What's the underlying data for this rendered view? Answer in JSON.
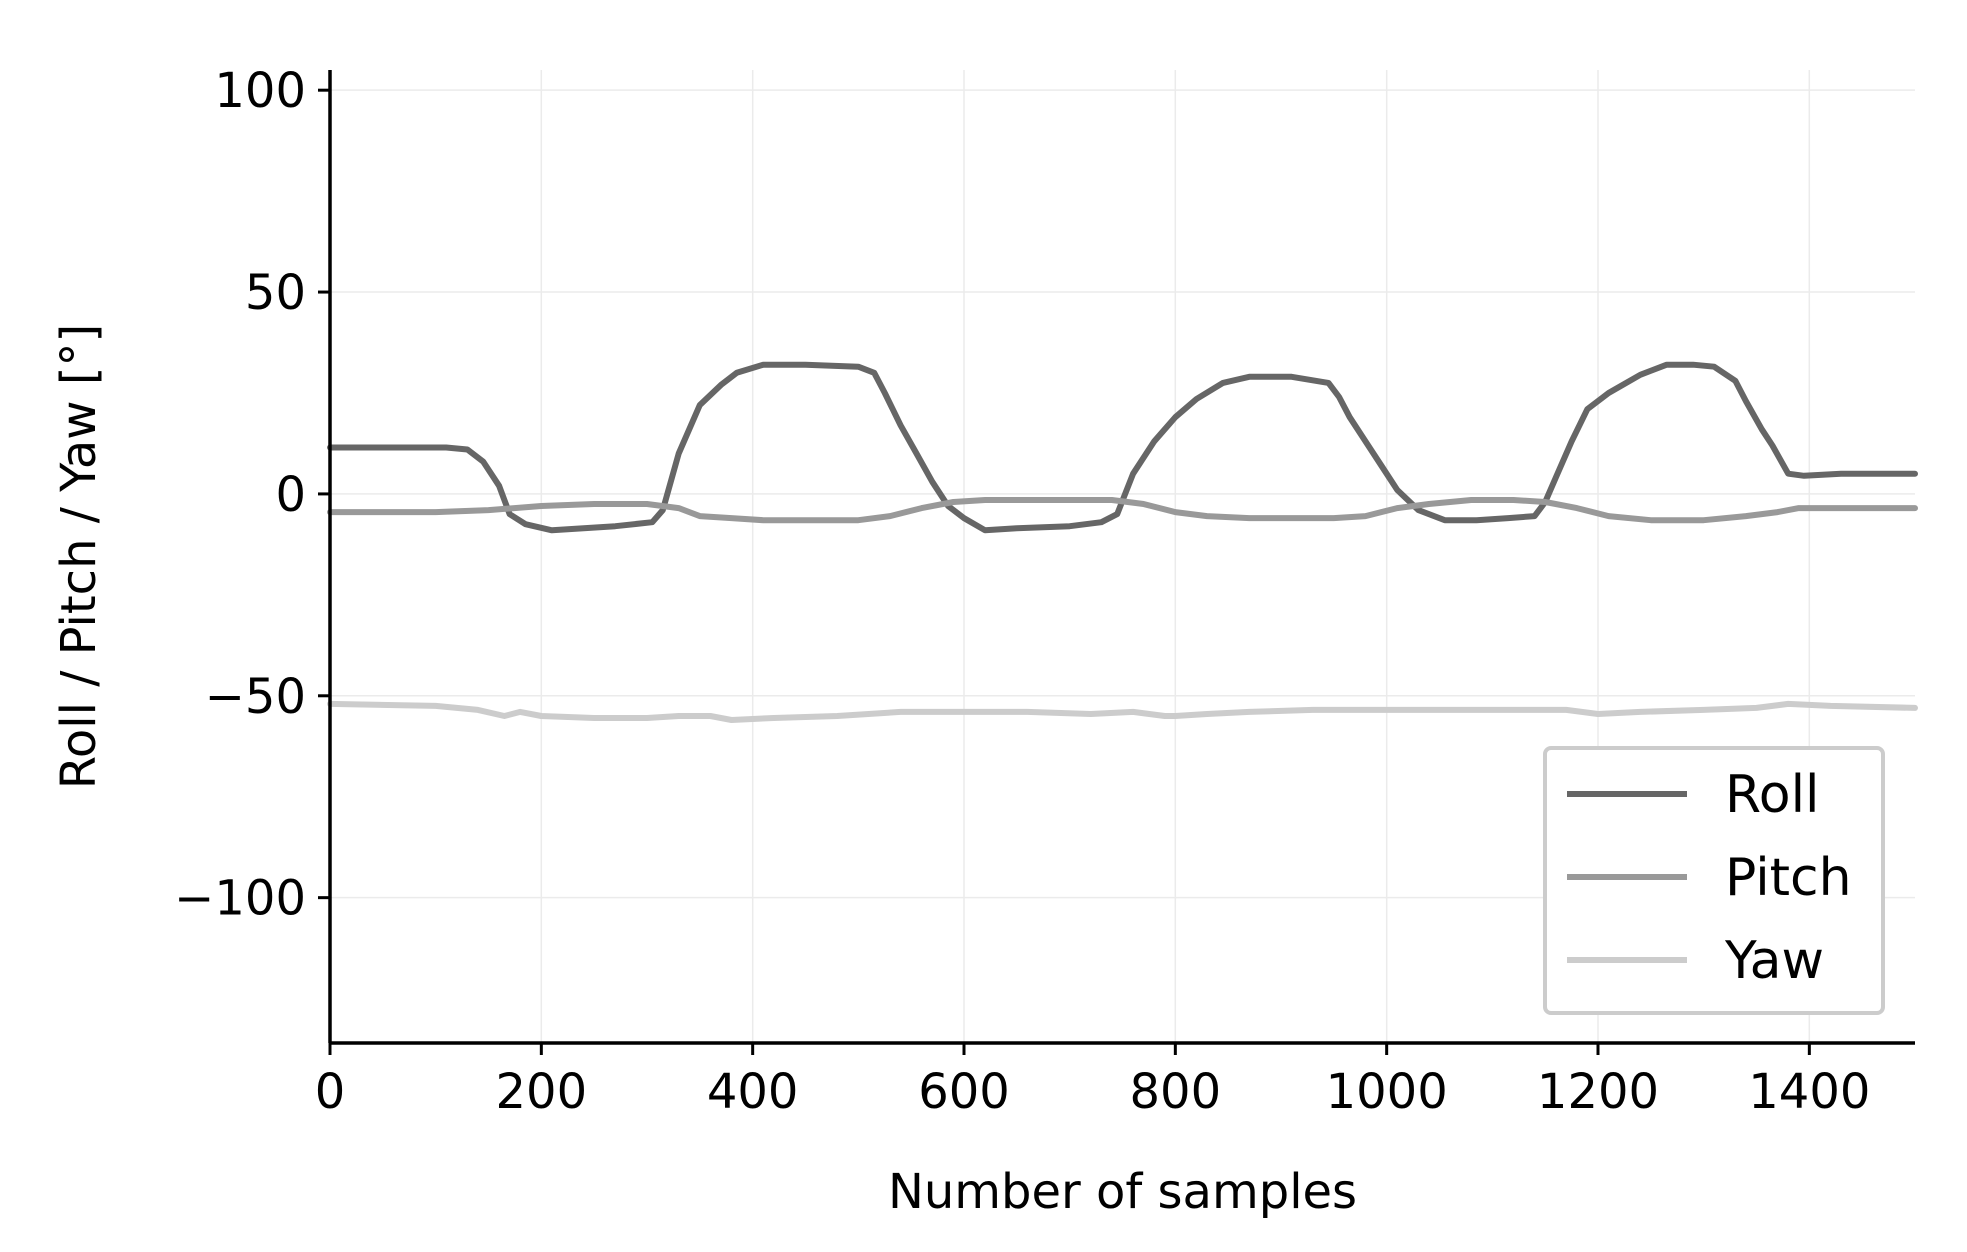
{
  "chart_data": {
    "type": "line",
    "title": "",
    "xlabel": "Number of samples",
    "ylabel": "Roll / Pitch / Yaw [°]",
    "xlim": [
      0,
      1500
    ],
    "ylim": [
      -136,
      105
    ],
    "xticks": [
      0,
      200,
      400,
      600,
      800,
      1000,
      1200,
      1400
    ],
    "yticks": [
      100,
      50,
      0,
      -50,
      -100
    ],
    "xtick_labels": [
      "0",
      "200",
      "400",
      "600",
      "800",
      "1000",
      "1200",
      "1400"
    ],
    "ytick_labels": [
      "100",
      "50",
      "0",
      "−50",
      "−100"
    ],
    "grid": true,
    "legend_position": "bottom-right",
    "series": [
      {
        "name": "Roll",
        "color": "#666666",
        "x": [
          0,
          60,
          110,
          130,
          145,
          160,
          170,
          185,
          210,
          240,
          270,
          305,
          315,
          330,
          350,
          370,
          385,
          410,
          450,
          500,
          515,
          525,
          540,
          555,
          570,
          585,
          600,
          620,
          650,
          700,
          730,
          745,
          760,
          780,
          800,
          820,
          845,
          870,
          910,
          945,
          955,
          965,
          980,
          995,
          1010,
          1030,
          1055,
          1085,
          1115,
          1140,
          1150,
          1160,
          1175,
          1190,
          1210,
          1240,
          1265,
          1290,
          1310,
          1330,
          1340,
          1355,
          1365,
          1380,
          1395,
          1430,
          1500
        ],
        "values": [
          11.5,
          11.5,
          11.5,
          11,
          8,
          2,
          -5,
          -7.5,
          -9,
          -8.5,
          -8,
          -7,
          -4,
          10,
          22,
          27,
          30,
          32,
          32,
          31.5,
          30,
          25,
          17,
          10,
          3,
          -3,
          -6,
          -9,
          -8.5,
          -8,
          -7,
          -5,
          5,
          13,
          19,
          23.5,
          27.5,
          29,
          29,
          27.5,
          24,
          19,
          13,
          7,
          1,
          -4,
          -6.5,
          -6.5,
          -6,
          -5.5,
          -2,
          4,
          13,
          21,
          25,
          29.5,
          32,
          32,
          31.5,
          28,
          23,
          16,
          12,
          5,
          4.5,
          5,
          5
        ]
      },
      {
        "name": "Pitch",
        "color": "#999999",
        "x": [
          0,
          100,
          150,
          200,
          250,
          300,
          330,
          350,
          380,
          410,
          450,
          500,
          530,
          560,
          590,
          620,
          650,
          700,
          740,
          770,
          800,
          830,
          870,
          920,
          950,
          980,
          1010,
          1040,
          1080,
          1120,
          1150,
          1180,
          1210,
          1250,
          1300,
          1340,
          1370,
          1390,
          1450,
          1500
        ],
        "values": [
          -4.5,
          -4.5,
          -4,
          -3,
          -2.5,
          -2.5,
          -3.5,
          -5.5,
          -6,
          -6.5,
          -6.5,
          -6.5,
          -5.5,
          -3.5,
          -2,
          -1.5,
          -1.5,
          -1.5,
          -1.5,
          -2.5,
          -4.5,
          -5.5,
          -6,
          -6,
          -6,
          -5.5,
          -3.5,
          -2.5,
          -1.5,
          -1.5,
          -2,
          -3.5,
          -5.5,
          -6.5,
          -6.5,
          -5.5,
          -4.5,
          -3.5,
          -3.5,
          -3.5
        ]
      },
      {
        "name": "Yaw",
        "color": "#cccccc",
        "x": [
          0,
          100,
          140,
          165,
          180,
          200,
          250,
          300,
          330,
          360,
          380,
          420,
          480,
          540,
          600,
          660,
          720,
          760,
          790,
          800,
          830,
          870,
          930,
          1000,
          1060,
          1120,
          1170,
          1200,
          1240,
          1300,
          1350,
          1380,
          1420,
          1500
        ],
        "values": [
          -52,
          -52.5,
          -53.5,
          -55,
          -54,
          -55,
          -55.5,
          -55.5,
          -55,
          -55,
          -56,
          -55.5,
          -55,
          -54,
          -54,
          -54,
          -54.5,
          -54,
          -55,
          -55,
          -54.5,
          -54,
          -53.5,
          -53.5,
          -53.5,
          -53.5,
          -53.5,
          -54.5,
          -54,
          -53.5,
          -53,
          -52,
          -52.5,
          -53
        ]
      }
    ]
  }
}
